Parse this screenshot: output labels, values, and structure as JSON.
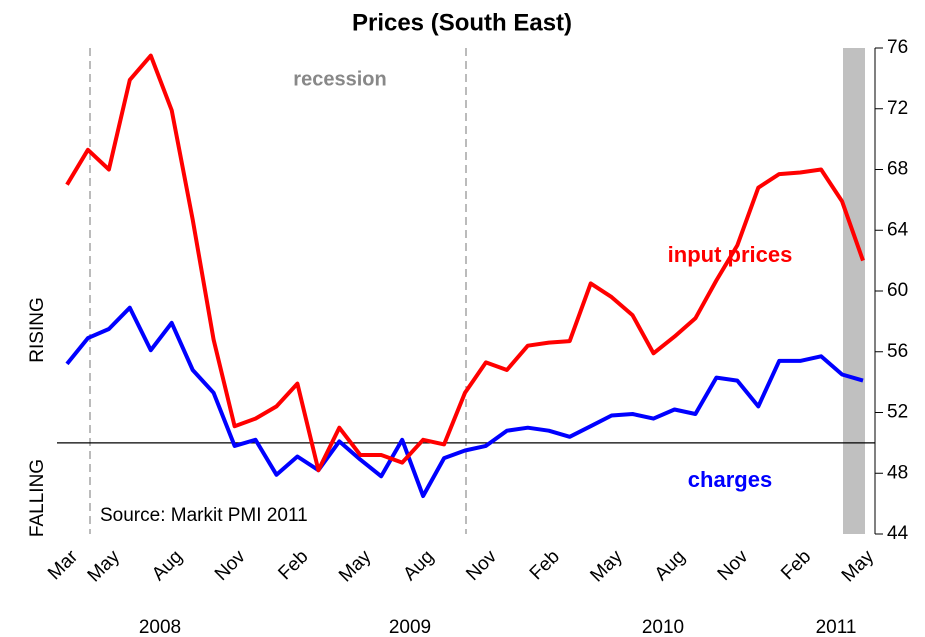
{
  "chart_data": {
    "type": "line",
    "title": "Prices (South East)",
    "categories": [
      "Mar",
      null,
      "May",
      null,
      null,
      "Aug",
      null,
      null,
      "Nov",
      null,
      null,
      "Feb",
      null,
      null,
      "May",
      null,
      null,
      "Aug",
      null,
      null,
      "Nov",
      null,
      null,
      "Feb",
      null,
      null,
      "May",
      null,
      null,
      "Aug",
      null,
      null,
      "Nov",
      null,
      null,
      "Feb",
      null,
      null,
      "May"
    ],
    "years": [
      "2008",
      "2009",
      "2010",
      "2011"
    ],
    "series": [
      {
        "name": "input prices",
        "color": "#ff0000",
        "values": [
          67.0,
          69.3,
          68.0,
          73.9,
          75.5,
          71.9,
          64.7,
          56.8,
          51.1,
          51.6,
          52.4,
          53.9,
          48.2,
          51.0,
          49.2,
          49.2,
          48.7,
          50.2,
          49.9,
          53.3,
          55.3,
          54.8,
          56.4,
          56.6,
          56.7,
          60.5,
          59.6,
          58.4,
          55.9,
          57.0,
          58.2,
          60.7,
          63.0,
          66.8,
          67.7,
          67.8,
          68.0,
          65.9,
          62.0
        ]
      },
      {
        "name": "charges",
        "color": "#0000ff",
        "values": [
          55.2,
          56.9,
          57.5,
          58.9,
          56.1,
          57.9,
          54.8,
          53.3,
          49.8,
          50.2,
          47.9,
          49.1,
          48.2,
          50.1,
          48.9,
          47.8,
          50.2,
          46.5,
          49.0,
          49.5,
          49.8,
          50.8,
          51.0,
          50.8,
          50.4,
          51.1,
          51.8,
          51.9,
          51.6,
          52.2,
          51.9,
          54.3,
          54.1,
          52.4,
          55.4,
          55.4,
          55.7,
          54.5,
          54.1
        ]
      }
    ],
    "ylim": [
      44,
      76
    ],
    "yticks": [
      44,
      48,
      52,
      56,
      60,
      64,
      68,
      72,
      76
    ],
    "baseline": 50,
    "annotations": {
      "recession": "recession",
      "source": "Source: Markit PMI 2011",
      "rising": "RISING",
      "falling": "FALLING"
    }
  }
}
